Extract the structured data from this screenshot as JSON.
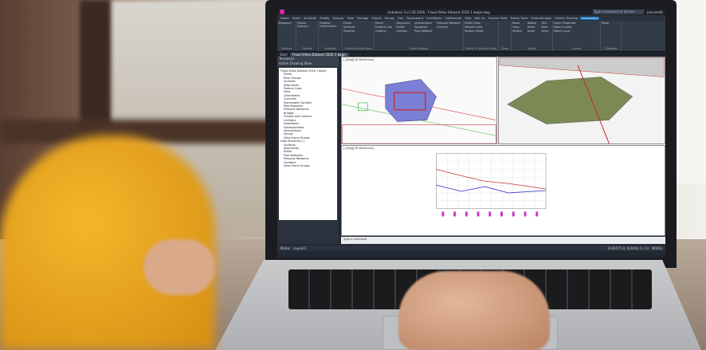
{
  "app": {
    "title": "Autodesk Civil 3D 2026 - Flood Video Dataset 2026 1 begin.dwg",
    "search_placeholder": "Type a keyword or phrase",
    "user": "johnsmith"
  },
  "ribbon_tabs": [
    "Home",
    "Insert",
    "Annotate",
    "Modify",
    "Analyze",
    "View",
    "Manage",
    "Output",
    "Survey",
    "Rail",
    "Transparent",
    "InfraWorks",
    "Collaborate",
    "Help",
    "Add-ins",
    "Express Tools",
    "Raster Tools",
    "Featured Apps",
    "Vehicle Tracking",
    "Geolocation"
  ],
  "active_tab": "Geolocation",
  "ribbon_panels": [
    {
      "label": "Palettes",
      "items": [
        "Toolspace"
      ]
    },
    {
      "label": "Explore",
      "items": [
        "Project Explorer"
      ]
    },
    {
      "label": "Optimize",
      "items": [
        "Grading Optimization"
      ]
    },
    {
      "label": "Create Ground Data",
      "items": [
        "Points",
        "Surfaces",
        "Traverse"
      ]
    },
    {
      "label": "Create Design",
      "items": [
        "Parcel",
        "Feature Line",
        "Grading",
        "Alignment",
        "Profile",
        "Corridor",
        "Intersections",
        "Assembly",
        "Pipe Network",
        "Pressure Network",
        "Channel"
      ]
    },
    {
      "label": "Profile & Section Views",
      "items": [
        "Profile View",
        "Sample Lines",
        "Section Views"
      ]
    },
    {
      "label": "Draw",
      "items": []
    },
    {
      "label": "Modify",
      "items": [
        "Move",
        "Copy",
        "Stretch",
        "Rotate",
        "Mirror",
        "Scale",
        "Trim",
        "Fillet",
        "Array"
      ]
    },
    {
      "label": "Layers",
      "items": [
        "Layer Properties",
        "Make Current",
        "Match Layer"
      ]
    },
    {
      "label": "Clipboard",
      "items": [
        "Paste"
      ]
    }
  ],
  "doc_tabs": [
    "Start",
    "Flood Video Dataset 2026 1 begin"
  ],
  "prospector": {
    "title": "Toolspace",
    "header": "Active Drawing View",
    "tree": [
      {
        "label": "Flood Video Dataset 2026 1 begin",
        "level": 0
      },
      {
        "label": "Points",
        "level": 1
      },
      {
        "label": "Point Groups",
        "level": 1
      },
      {
        "label": "Surfaces",
        "level": 1
      },
      {
        "label": "Alignments",
        "level": 1
      },
      {
        "label": "Feature Lines",
        "level": 1
      },
      {
        "label": "Sites",
        "level": 1
      },
      {
        "label": "Catchments",
        "level": 1
      },
      {
        "label": "Channels",
        "level": 1
      },
      {
        "label": "Stormwater Controls",
        "level": 1
      },
      {
        "label": "Pipe Networks",
        "level": 1
      },
      {
        "label": "Pressure Networks",
        "level": 1
      },
      {
        "label": "Bridges",
        "level": 1
      },
      {
        "label": "Tunnels and Caverns",
        "level": 1
      },
      {
        "label": "Corridors",
        "level": 1
      },
      {
        "label": "Assemblies",
        "level": 1
      },
      {
        "label": "Subassemblies",
        "level": 1
      },
      {
        "label": "Intersections",
        "level": 1
      },
      {
        "label": "Survey",
        "level": 1
      },
      {
        "label": "View Frame Groups",
        "level": 1
      },
      {
        "label": "Data Shortcuts [ ]",
        "level": 0
      },
      {
        "label": "Surfaces",
        "level": 1
      },
      {
        "label": "Alignments",
        "level": 1
      },
      {
        "label": "Points",
        "level": 1
      },
      {
        "label": "Pipe Networks",
        "level": 1
      },
      {
        "label": "Pressure Networks",
        "level": 1
      },
      {
        "label": "Corridors",
        "level": 1
      },
      {
        "label": "View Frame Groups",
        "level": 1
      }
    ]
  },
  "viewports": {
    "top_left": "[-][Top][2D Wireframe]",
    "bottom": "[-][Top][2D Wireframe]"
  },
  "command_line": "Type a command",
  "layout_tabs": [
    "Model",
    "Layout1"
  ],
  "status": {
    "mode": "MODEL",
    "coords": "1936475.0, 610442.0, 0.0"
  },
  "colors": {
    "app_dark": "#222831",
    "accent": "#0d6fb8",
    "sleeve": "#f4b62a"
  }
}
